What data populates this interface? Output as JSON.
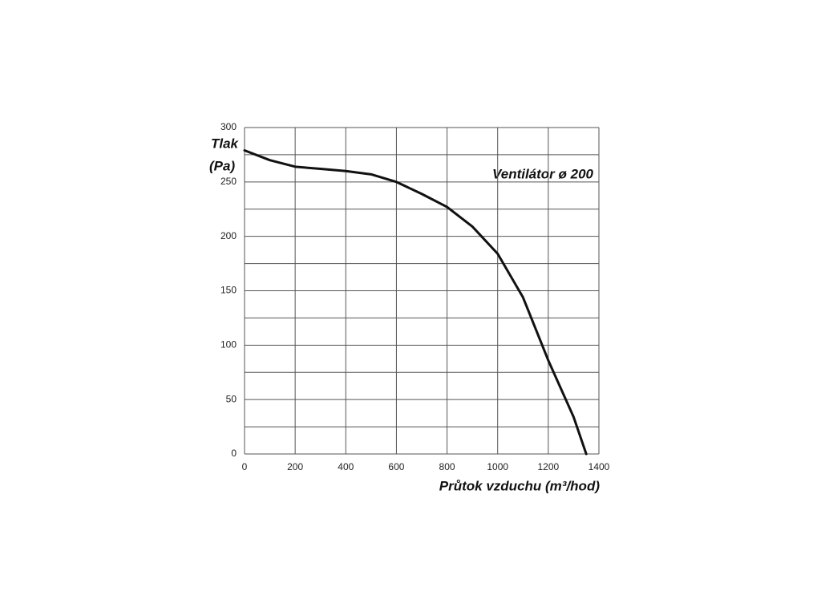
{
  "chart_data": {
    "type": "line",
    "title": "Ventilátor ø 200",
    "y_label_lines": [
      "Tlak",
      "(Pa)"
    ],
    "x_label": "Průtok vzduchu (m³/hod)",
    "x": [
      0,
      100,
      200,
      300,
      400,
      500,
      600,
      700,
      800,
      900,
      1000,
      1100,
      1200,
      1300,
      1350
    ],
    "series": [
      {
        "color": "#111111",
        "values": [
          279,
          270,
          264,
          262,
          260,
          257,
          250,
          239,
          227,
          209,
          184,
          144,
          86,
          34,
          0
        ]
      }
    ],
    "xlim": [
      0,
      1400
    ],
    "xticks": [
      0,
      200,
      400,
      600,
      800,
      1000,
      1200,
      1400
    ],
    "ylim": [
      0,
      300
    ],
    "yticks": [
      0,
      50,
      100,
      150,
      200,
      250,
      300
    ],
    "y_minor_ticks": [
      25,
      75,
      125,
      175,
      225,
      275
    ],
    "grid": true
  }
}
